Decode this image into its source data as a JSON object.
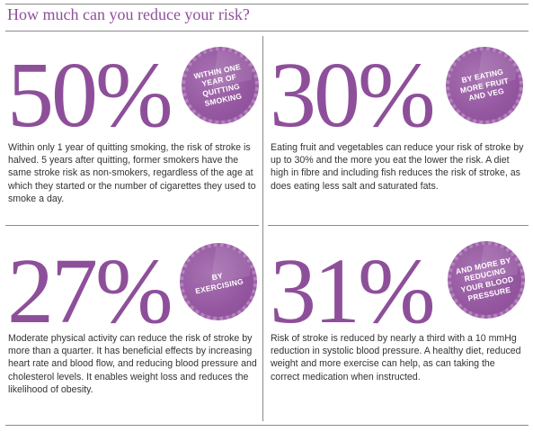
{
  "title": "How much can you reduce your risk?",
  "panels": [
    {
      "stat": "50%",
      "badge": "WITHIN ONE YEAR OF QUITTING SMOKING",
      "text": "Within only 1 year of quitting smoking, the risk of stroke is halved. 5 years after quitting, former smokers have the same stroke risk as non-smokers, regardless of the age at which they started or the number of cigarettes they used to smoke a day."
    },
    {
      "stat": "30%",
      "badge": "BY EATING MORE FRUIT AND VEG",
      "text": "Eating fruit and vegetables can reduce your risk of stroke by up to 30% and the more you eat the lower the risk. A diet high in fibre and including fish reduces the risk of stroke, as does eating less salt and saturated fats."
    },
    {
      "stat": "27%",
      "badge": "BY EXERCISING",
      "text": "Moderate physical activity can reduce the risk of stroke by more than a quarter. It has beneficial effects by increasing heart rate and blood flow, and reducing blood pressure and cholesterol levels. It enables weight loss and reduces the likelihood of obesity."
    },
    {
      "stat": "31%",
      "badge": "AND MORE BY REDUCING YOUR BLOOD PRESSURE",
      "text": "Risk of stroke is reduced by nearly a third with a 10 mmHg reduction in systolic blood pressure. A healthy diet, reduced weight and more exercise can help, as can taking the correct medication when instructed."
    }
  ],
  "colors": {
    "accent": "#8e4f9a",
    "badge": "#9457a0",
    "rule": "#8a8a8a"
  }
}
